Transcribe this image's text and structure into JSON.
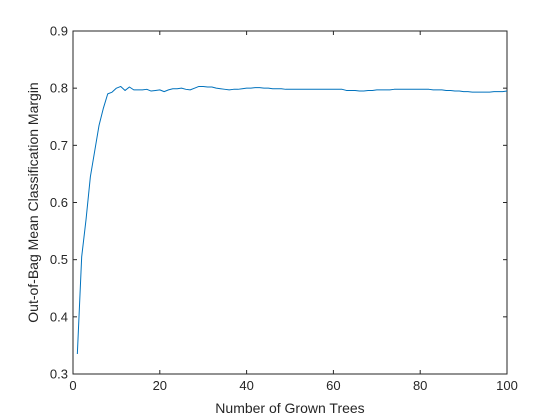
{
  "chart_data": {
    "type": "line",
    "title": "",
    "xlabel": "Number of Grown Trees",
    "ylabel": "Out-of-Bag Mean Classification Margin",
    "xlim": [
      0,
      100
    ],
    "ylim": [
      0.3,
      0.9
    ],
    "x_ticks": [
      "0",
      "20",
      "40",
      "60",
      "80",
      "100"
    ],
    "y_ticks": [
      "0.3",
      "0.4",
      "0.5",
      "0.6",
      "0.7",
      "0.8",
      "0.9"
    ],
    "grid": false,
    "line_color": "#0072BD",
    "series": [
      {
        "x": [
          1,
          2,
          3,
          4,
          5,
          6,
          7,
          8,
          9,
          10,
          11,
          12,
          13,
          14,
          15,
          16,
          17,
          18,
          19,
          20,
          21,
          22,
          23,
          24,
          25,
          26,
          27,
          28,
          29,
          30,
          31,
          32,
          33,
          34,
          35,
          36,
          37,
          38,
          39,
          40,
          41,
          42,
          43,
          44,
          45,
          46,
          47,
          48,
          49,
          50,
          51,
          52,
          53,
          54,
          55,
          56,
          57,
          58,
          59,
          60,
          61,
          62,
          63,
          64,
          65,
          66,
          67,
          68,
          69,
          70,
          71,
          72,
          73,
          74,
          75,
          76,
          77,
          78,
          79,
          80,
          81,
          82,
          83,
          84,
          85,
          86,
          87,
          88,
          89,
          90,
          91,
          92,
          93,
          94,
          95,
          96,
          97,
          98,
          99,
          100
        ],
        "y": [
          0.335,
          0.505,
          0.57,
          0.645,
          0.69,
          0.735,
          0.765,
          0.79,
          0.793,
          0.8,
          0.803,
          0.796,
          0.802,
          0.797,
          0.797,
          0.797,
          0.798,
          0.795,
          0.796,
          0.797,
          0.794,
          0.797,
          0.799,
          0.799,
          0.8,
          0.798,
          0.797,
          0.8,
          0.803,
          0.803,
          0.802,
          0.802,
          0.8,
          0.799,
          0.798,
          0.797,
          0.798,
          0.798,
          0.799,
          0.8,
          0.8,
          0.801,
          0.801,
          0.8,
          0.8,
          0.799,
          0.799,
          0.799,
          0.798,
          0.798,
          0.798,
          0.798,
          0.798,
          0.798,
          0.798,
          0.798,
          0.798,
          0.798,
          0.798,
          0.798,
          0.798,
          0.798,
          0.796,
          0.796,
          0.796,
          0.795,
          0.795,
          0.796,
          0.796,
          0.797,
          0.797,
          0.797,
          0.797,
          0.798,
          0.798,
          0.798,
          0.798,
          0.798,
          0.798,
          0.798,
          0.798,
          0.798,
          0.797,
          0.797,
          0.797,
          0.796,
          0.796,
          0.795,
          0.795,
          0.794,
          0.794,
          0.793,
          0.793,
          0.793,
          0.793,
          0.793,
          0.794,
          0.794,
          0.794,
          0.795
        ]
      }
    ]
  }
}
